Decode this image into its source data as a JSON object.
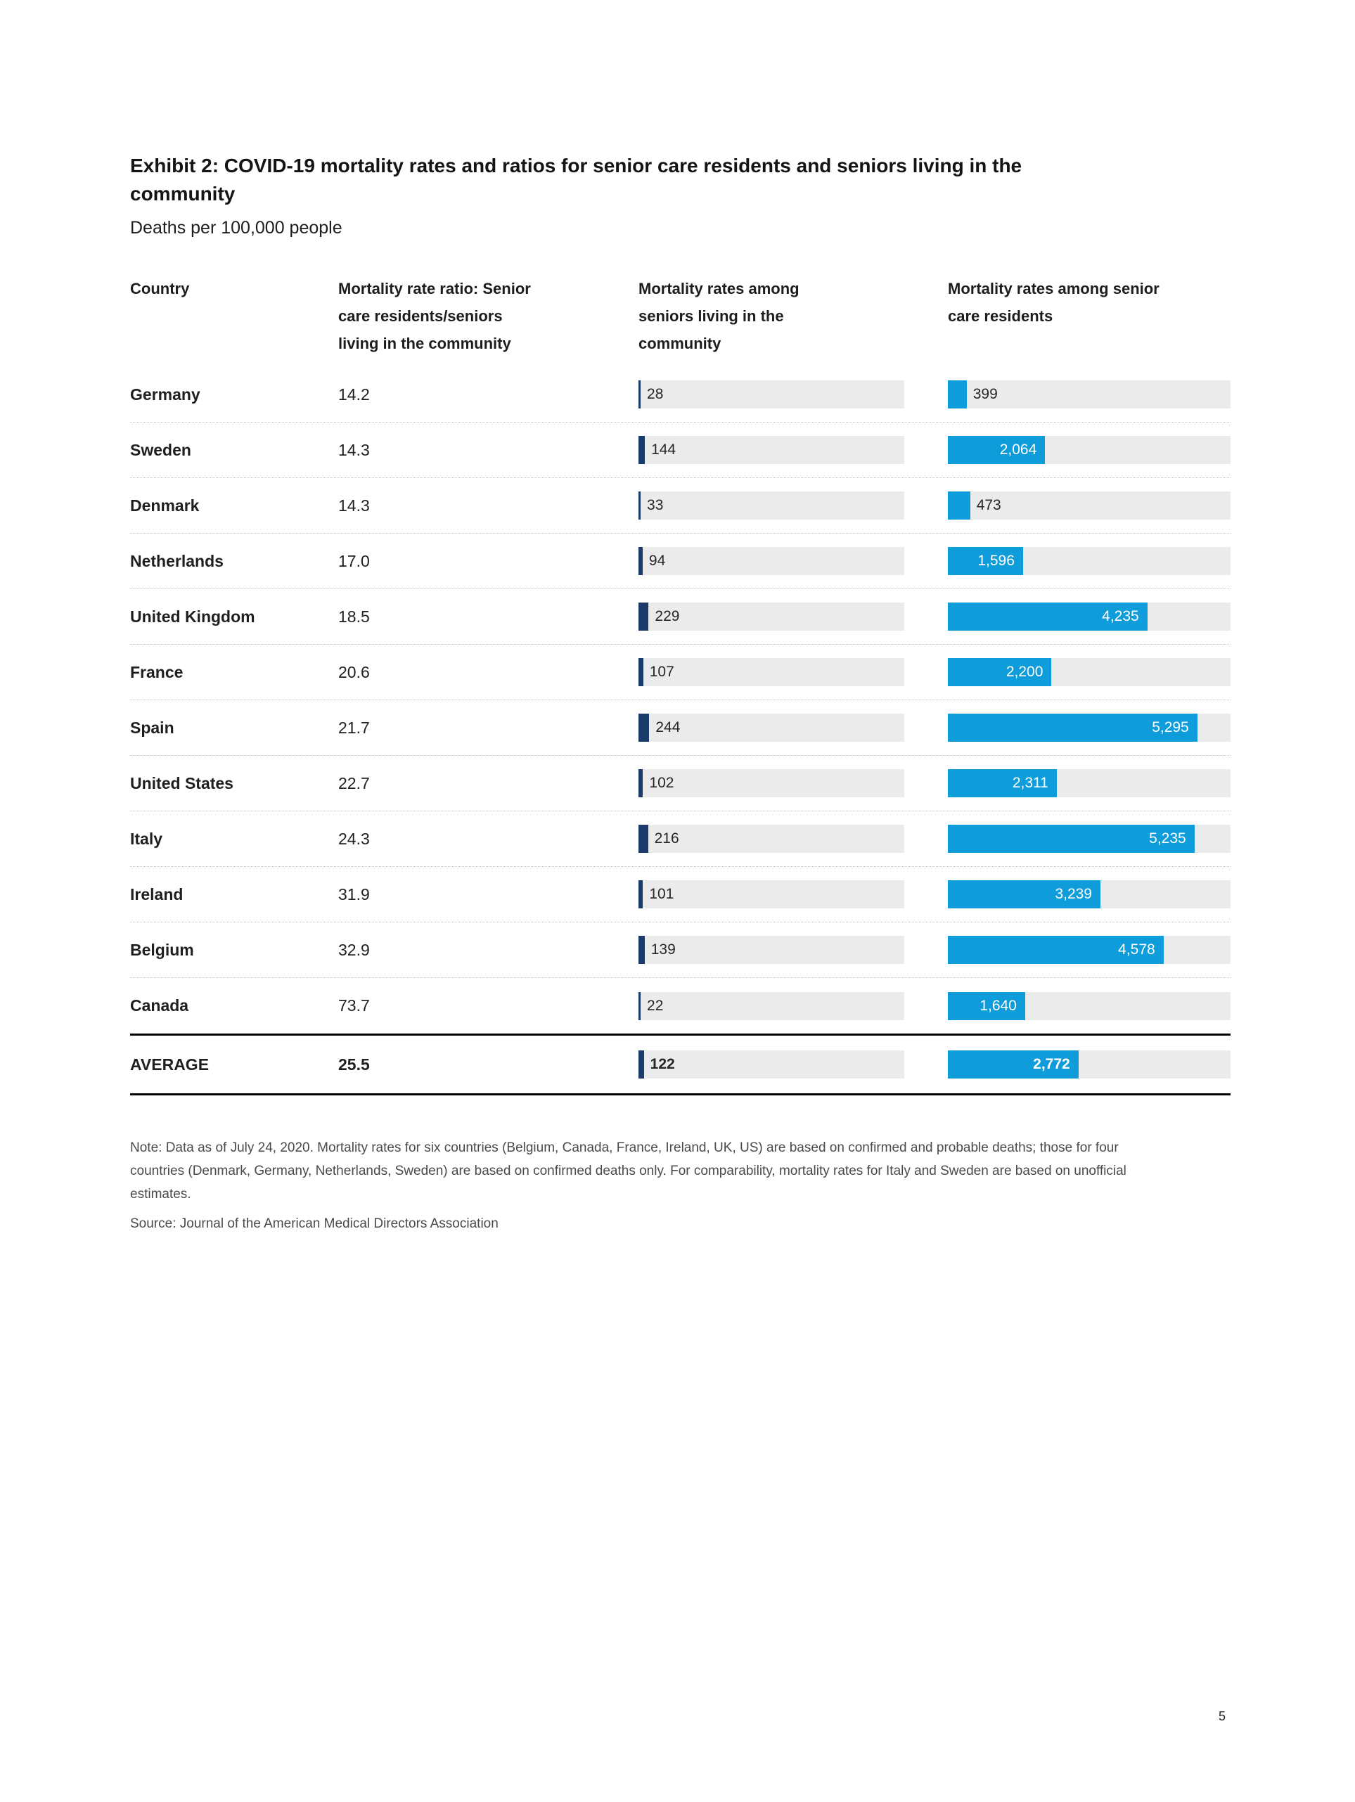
{
  "page": {
    "number": "5"
  },
  "exhibit": {
    "title": "Exhibit 2: COVID-19 mortality rates and ratios for senior care residents and seniors living in the community",
    "subtitle": "Deaths per 100,000 people",
    "note": "Note: Data as of July 24, 2020. Mortality rates for six countries (Belgium, Canada, France, Ireland, UK, US) are based on confirmed and probable deaths; those for four countries (Denmark, Germany, Netherlands, Sweden) are based on confirmed deaths only. For comparability, mortality rates for Italy and Sweden are based on unofficial estimates.",
    "source": "Source: Journal of the American Medical Directors Association"
  },
  "chart_data": {
    "type": "bar",
    "title": "Exhibit 2: COVID-19 mortality rates and ratios for senior care residents and seniors living in the community",
    "subtitle": "Deaths per 100,000 people",
    "orientation": "horizontal",
    "scale_max": 6000,
    "grid": false,
    "legend": false,
    "colors": {
      "community_bar": "#1b3c6b",
      "senior_care_bar": "#0f9cda",
      "bar_track": "#ebebeb"
    },
    "columns": {
      "country": "Country",
      "ratio": [
        "Mortality rate ratio: Senior",
        "care residents/seniors",
        "living in the community"
      ],
      "community": [
        "Mortality rates among",
        "seniors living in the",
        "community"
      ],
      "senior_care": [
        "Mortality rates among senior",
        "care residents"
      ]
    },
    "rows": [
      {
        "country": "Germany",
        "ratio": "14.2",
        "community_rate": 28,
        "community_label": "28",
        "senior_care_rate": 399,
        "senior_care_label": "399",
        "is_average": false
      },
      {
        "country": "Sweden",
        "ratio": "14.3",
        "community_rate": 144,
        "community_label": "144",
        "senior_care_rate": 2064,
        "senior_care_label": "2,064",
        "is_average": false
      },
      {
        "country": "Denmark",
        "ratio": "14.3",
        "community_rate": 33,
        "community_label": "33",
        "senior_care_rate": 473,
        "senior_care_label": "473",
        "is_average": false
      },
      {
        "country": "Netherlands",
        "ratio": "17.0",
        "community_rate": 94,
        "community_label": "94",
        "senior_care_rate": 1596,
        "senior_care_label": "1,596",
        "is_average": false
      },
      {
        "country": "United Kingdom",
        "ratio": "18.5",
        "community_rate": 229,
        "community_label": "229",
        "senior_care_rate": 4235,
        "senior_care_label": "4,235",
        "is_average": false
      },
      {
        "country": "France",
        "ratio": "20.6",
        "community_rate": 107,
        "community_label": "107",
        "senior_care_rate": 2200,
        "senior_care_label": "2,200",
        "is_average": false
      },
      {
        "country": "Spain",
        "ratio": "21.7",
        "community_rate": 244,
        "community_label": "244",
        "senior_care_rate": 5295,
        "senior_care_label": "5,295",
        "is_average": false
      },
      {
        "country": "United States",
        "ratio": "22.7",
        "community_rate": 102,
        "community_label": "102",
        "senior_care_rate": 2311,
        "senior_care_label": "2,311",
        "is_average": false
      },
      {
        "country": "Italy",
        "ratio": "24.3",
        "community_rate": 216,
        "community_label": "216",
        "senior_care_rate": 5235,
        "senior_care_label": "5,235",
        "is_average": false
      },
      {
        "country": "Ireland",
        "ratio": "31.9",
        "community_rate": 101,
        "community_label": "101",
        "senior_care_rate": 3239,
        "senior_care_label": "3,239",
        "is_average": false
      },
      {
        "country": "Belgium",
        "ratio": "32.9",
        "community_rate": 139,
        "community_label": "139",
        "senior_care_rate": 4578,
        "senior_care_label": "4,578",
        "is_average": false
      },
      {
        "country": "Canada",
        "ratio": "73.7",
        "community_rate": 22,
        "community_label": "22",
        "senior_care_rate": 1640,
        "senior_care_label": "1,640",
        "is_average": false
      },
      {
        "country": "AVERAGE",
        "ratio": "25.5",
        "community_rate": 122,
        "community_label": "122",
        "senior_care_rate": 2772,
        "senior_care_label": "2,772",
        "is_average": true
      }
    ]
  }
}
